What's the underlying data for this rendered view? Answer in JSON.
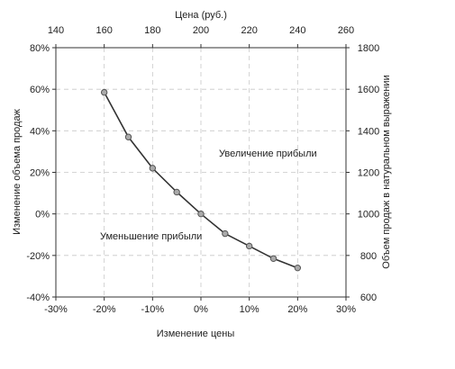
{
  "chart_data": {
    "type": "line",
    "title": "",
    "xlabel": "Изменение цены",
    "ylabel": "Изменение объема продаж",
    "top_xlabel": "Цена (руб.)",
    "right_ylabel": "Объем продаж в натуральном выражении",
    "xlim": [
      -30,
      30
    ],
    "ylim": [
      -40,
      80
    ],
    "top_xlim": [
      140,
      260
    ],
    "right_ylim": [
      600,
      1800
    ],
    "x_ticks": [
      "-30%",
      "-20%",
      "-10%",
      "0%",
      "10%",
      "20%",
      "30%"
    ],
    "x_tick_values": [
      -30,
      -20,
      -10,
      0,
      10,
      20,
      30
    ],
    "y_ticks": [
      "-40%",
      "-20%",
      "0%",
      "20%",
      "40%",
      "60%",
      "80%"
    ],
    "y_tick_values": [
      -40,
      -20,
      0,
      20,
      40,
      60,
      80
    ],
    "top_x_ticks": [
      "140",
      "160",
      "180",
      "200",
      "220",
      "240",
      "260"
    ],
    "top_x_tick_values": [
      140,
      160,
      180,
      200,
      220,
      240,
      260
    ],
    "right_y_ticks": [
      "600",
      "800",
      "1000",
      "1200",
      "1400",
      "1600",
      "1800"
    ],
    "right_y_tick_values": [
      600,
      800,
      1000,
      1200,
      1400,
      1600,
      1800
    ],
    "grid": true,
    "series": [
      {
        "x": [
          -20,
          -15,
          -10,
          -5,
          0,
          5,
          10,
          15,
          20
        ],
        "y": [
          58.5,
          37,
          22,
          10.5,
          0,
          -9.5,
          -15.5,
          -21.5,
          -26
        ],
        "color": "#333333",
        "marker_fill": "#aaaaaa"
      }
    ],
    "annotations": [
      {
        "text": "Увеличение прибыли",
        "x": 10,
        "y": 30
      },
      {
        "text": "Уменьшение прибыли",
        "x": -12,
        "y": -11
      }
    ]
  }
}
